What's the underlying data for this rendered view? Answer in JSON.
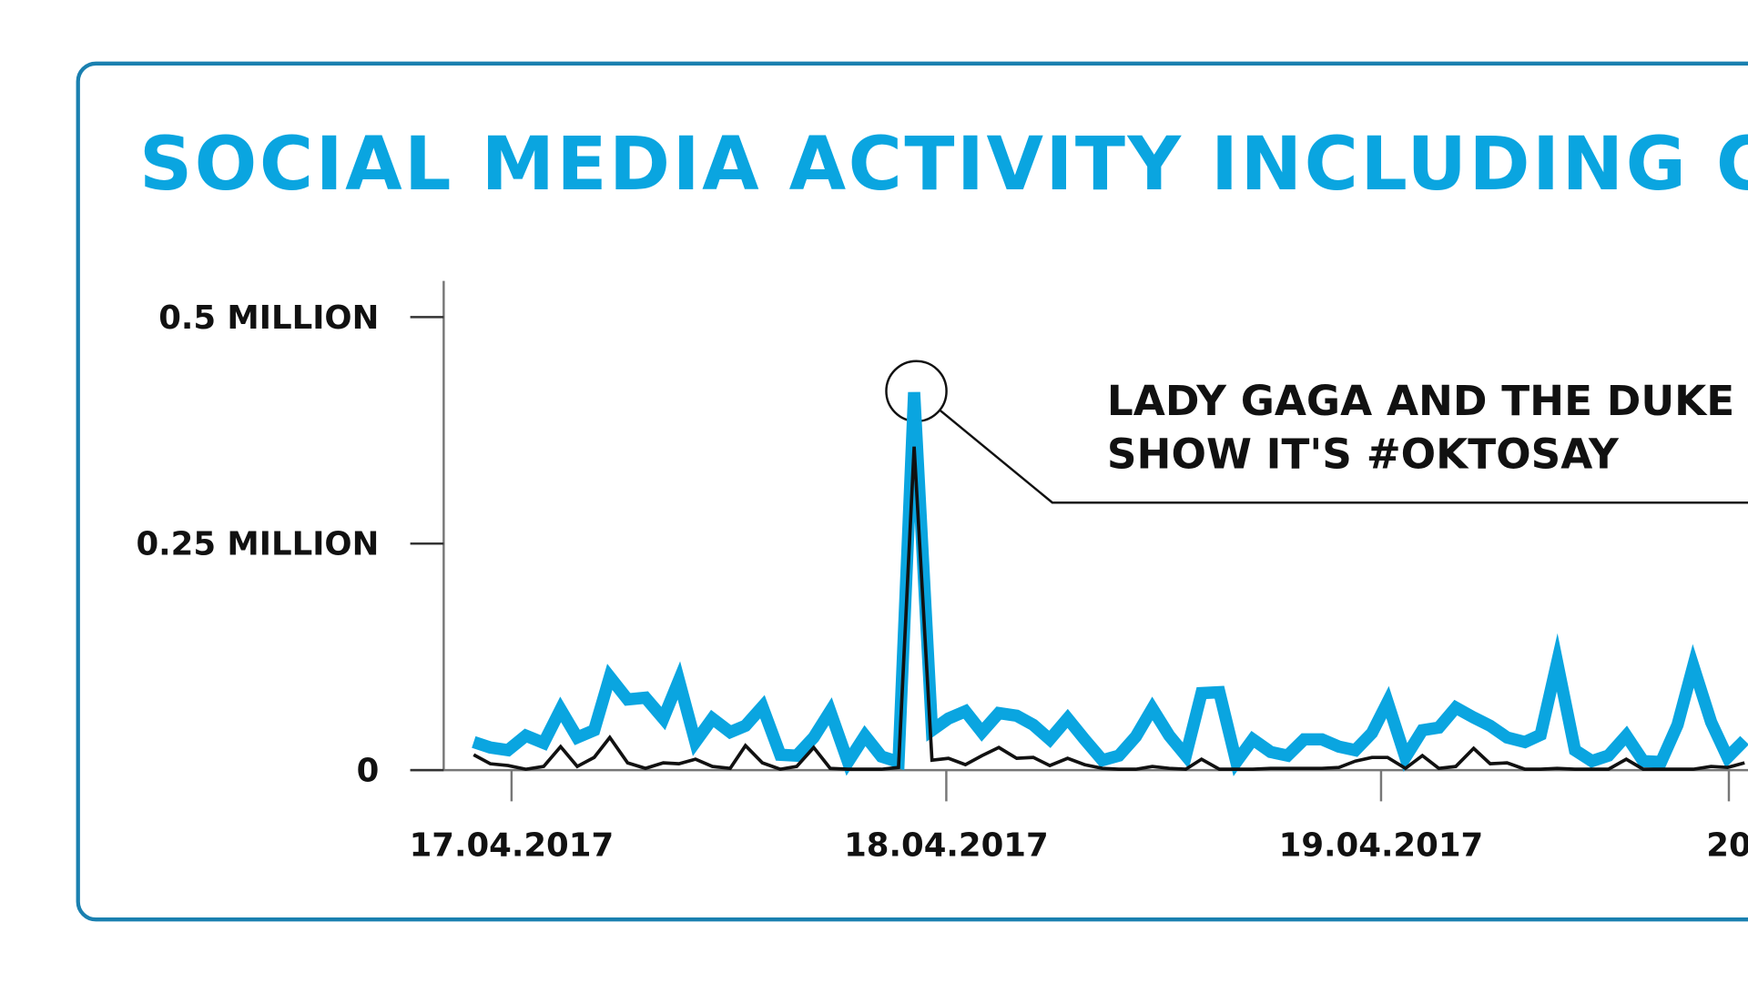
{
  "chart_data": {
    "type": "line",
    "title": "SOCIAL MEDIA ACTIVITY INCLUDING C",
    "annotation": [
      "LADY GAGA AND THE DUKE",
      "SHOW IT'S #OKTOSAY"
    ],
    "x": [
      -0.087,
      -0.049,
      -0.008,
      0.033,
      0.074,
      0.113,
      0.151,
      0.19,
      0.226,
      0.267,
      0.308,
      0.349,
      0.385,
      0.423,
      0.462,
      0.503,
      0.538,
      0.577,
      0.618,
      0.656,
      0.695,
      0.733,
      0.774,
      0.813,
      0.851,
      0.89,
      0.926,
      0.967,
      1.005,
      1.044,
      1.082,
      1.121,
      1.162,
      1.2,
      1.238,
      1.279,
      1.318,
      1.359,
      1.397,
      1.436,
      1.474,
      1.513,
      1.551,
      1.587,
      1.628,
      1.667,
      1.705,
      1.746,
      1.785,
      1.823,
      1.864,
      1.903,
      1.941,
      1.979,
      2.015,
      2.056,
      2.095,
      2.133,
      2.172,
      2.213,
      2.251,
      2.29,
      2.331,
      2.367,
      2.405,
      2.446,
      2.485,
      2.523,
      2.564,
      2.603,
      2.644,
      2.682,
      2.718,
      2.759,
      2.797,
      2.836
    ],
    "series": [
      {
        "color": "#0aa5e0",
        "values": [
          0.031,
          0.025,
          0.022,
          0.038,
          0.03,
          0.067,
          0.036,
          0.044,
          0.103,
          0.078,
          0.08,
          0.057,
          0.099,
          0.031,
          0.057,
          0.042,
          0.049,
          0.07,
          0.017,
          0.016,
          0.036,
          0.065,
          0.009,
          0.038,
          0.015,
          0.009,
          0.417,
          0.044,
          0.057,
          0.065,
          0.042,
          0.063,
          0.06,
          0.05,
          0.034,
          0.057,
          0.034,
          0.011,
          0.016,
          0.037,
          0.068,
          0.038,
          0.016,
          0.085,
          0.086,
          0.009,
          0.034,
          0.02,
          0.016,
          0.034,
          0.034,
          0.026,
          0.022,
          0.041,
          0.075,
          0.014,
          0.044,
          0.047,
          0.069,
          0.058,
          0.049,
          0.036,
          0.031,
          0.039,
          0.119,
          0.022,
          0.01,
          0.016,
          0.038,
          0.01,
          0.009,
          0.05,
          0.115,
          0.053,
          0.014,
          0.033
        ]
      },
      {
        "color": "#111111",
        "values": [
          0.017,
          0.007,
          0.005,
          0.001,
          0.004,
          0.026,
          0.004,
          0.014,
          0.036,
          0.008,
          0.002,
          0.008,
          0.007,
          0.012,
          0.004,
          0.002,
          0.027,
          0.008,
          0.001,
          0.004,
          0.025,
          0.002,
          0.001,
          0.001,
          0.001,
          0.003,
          0.357,
          0.011,
          0.013,
          0.006,
          0.016,
          0.025,
          0.013,
          0.014,
          0.005,
          0.013,
          0.006,
          0.002,
          0.001,
          0.001,
          0.004,
          0.002,
          0.001,
          0.012,
          0.001,
          0.001,
          0.001,
          0.002,
          0.002,
          0.002,
          0.002,
          0.003,
          0.01,
          0.014,
          0.014,
          0.002,
          0.016,
          0.002,
          0.004,
          0.024,
          0.007,
          0.008,
          0.001,
          0.001,
          0.002,
          0.001,
          0.001,
          0.001,
          0.012,
          0.001,
          0.001,
          0.001,
          0.001,
          0.004,
          0.003,
          0.008
        ]
      }
    ],
    "xlim": [
      -0.233,
      2.844
    ],
    "xticks": [
      {
        "value": 0,
        "label": "17.04.2017"
      },
      {
        "value": 1,
        "label": "18.04.2017"
      },
      {
        "value": 2,
        "label": "19.04.2017"
      },
      {
        "value": 2.8,
        "label": "20"
      }
    ],
    "ylim": [
      0,
      0.54
    ],
    "yticks": [
      {
        "value": 0,
        "label": "0"
      },
      {
        "value": 0.25,
        "label": "0.25 MILLION"
      },
      {
        "value": 0.5,
        "label": "0.5 MILLION"
      }
    ]
  }
}
